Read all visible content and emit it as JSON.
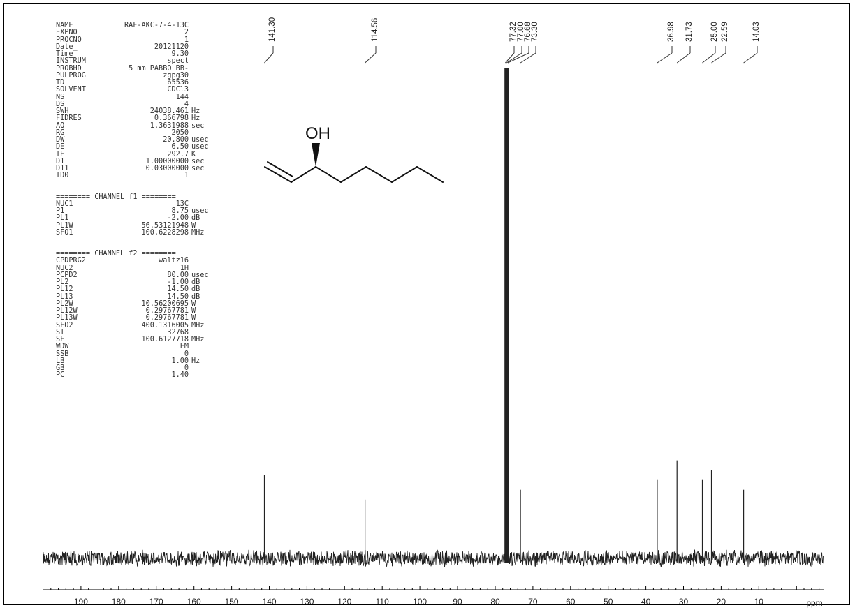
{
  "params_block1": [
    {
      "name": "NAME",
      "value": "RAF-AKC-7-4-13C",
      "unit": ""
    },
    {
      "name": "EXPNO",
      "value": "2",
      "unit": ""
    },
    {
      "name": "PROCNO",
      "value": "1",
      "unit": ""
    },
    {
      "name": "Date_",
      "value": "20121120",
      "unit": ""
    },
    {
      "name": "Time",
      "value": "9.30",
      "unit": ""
    },
    {
      "name": "INSTRUM",
      "value": "spect",
      "unit": ""
    },
    {
      "name": "PROBHD",
      "value": "5 mm PABBO BB-",
      "unit": ""
    },
    {
      "name": "PULPROG",
      "value": "zgpg30",
      "unit": ""
    },
    {
      "name": "TD",
      "value": "65536",
      "unit": ""
    },
    {
      "name": "SOLVENT",
      "value": "CDCl3",
      "unit": ""
    },
    {
      "name": "NS",
      "value": "144",
      "unit": ""
    },
    {
      "name": "DS",
      "value": "4",
      "unit": ""
    },
    {
      "name": "SWH",
      "value": "24038.461",
      "unit": "Hz"
    },
    {
      "name": "FIDRES",
      "value": "0.366798",
      "unit": "Hz"
    },
    {
      "name": "AQ",
      "value": "1.3631988",
      "unit": "sec"
    },
    {
      "name": "RG",
      "value": "2050",
      "unit": ""
    },
    {
      "name": "DW",
      "value": "20.800",
      "unit": "usec"
    },
    {
      "name": "DE",
      "value": "6.50",
      "unit": "usec"
    },
    {
      "name": "TE",
      "value": "292.7",
      "unit": "K"
    },
    {
      "name": "D1",
      "value": "1.00000000",
      "unit": "sec"
    },
    {
      "name": "D11",
      "value": "0.03000000",
      "unit": "sec"
    },
    {
      "name": "TD0",
      "value": "1",
      "unit": ""
    }
  ],
  "channel_f1_header": "======== CHANNEL f1 ========",
  "params_block2": [
    {
      "name": "NUC1",
      "value": "13C",
      "unit": ""
    },
    {
      "name": "P1",
      "value": "8.75",
      "unit": "usec"
    },
    {
      "name": "PL1",
      "value": "-2.00",
      "unit": "dB"
    },
    {
      "name": "PL1W",
      "value": "56.53121948",
      "unit": "W"
    },
    {
      "name": "SFO1",
      "value": "100.6228298",
      "unit": "MHz"
    }
  ],
  "channel_f2_header": "======== CHANNEL f2 ========",
  "params_block3": [
    {
      "name": "CPDPRG2",
      "value": "waltz16",
      "unit": ""
    },
    {
      "name": "NUC2",
      "value": "1H",
      "unit": ""
    },
    {
      "name": "PCPD2",
      "value": "80.00",
      "unit": "usec"
    },
    {
      "name": "PL2",
      "value": "-1.00",
      "unit": "dB"
    },
    {
      "name": "PL12",
      "value": "14.50",
      "unit": "dB"
    },
    {
      "name": "PL13",
      "value": "14.50",
      "unit": "dB"
    },
    {
      "name": "PL2W",
      "value": "10.56200695",
      "unit": "W"
    },
    {
      "name": "PL12W",
      "value": "0.29767781",
      "unit": "W"
    },
    {
      "name": "PL13W",
      "value": "0.29767781",
      "unit": "W"
    },
    {
      "name": "SFO2",
      "value": "400.1316005",
      "unit": "MHz"
    },
    {
      "name": "SI",
      "value": "32768",
      "unit": ""
    },
    {
      "name": "SF",
      "value": "100.6127718",
      "unit": "MHz"
    },
    {
      "name": "WDW",
      "value": "EM",
      "unit": ""
    },
    {
      "name": "SSB",
      "value": "0",
      "unit": ""
    },
    {
      "name": "LB",
      "value": "1.00",
      "unit": "Hz"
    },
    {
      "name": "GB",
      "value": "0",
      "unit": ""
    },
    {
      "name": "PC",
      "value": "1.40",
      "unit": ""
    }
  ],
  "molecule_label": "OH",
  "colors": {
    "line": "#222222",
    "text": "#333333",
    "frame": "#000000"
  },
  "chart_data": {
    "type": "line",
    "xlabel": "ppm",
    "ylabel": "",
    "xlim": [
      200,
      -7
    ],
    "x_reversed": true,
    "x_ticks": [
      190,
      180,
      170,
      160,
      150,
      140,
      130,
      120,
      110,
      100,
      90,
      80,
      70,
      60,
      50,
      40,
      30,
      20,
      10
    ],
    "peaks": [
      {
        "ppm": 141.3,
        "label": "141.30",
        "height": 0.17
      },
      {
        "ppm": 114.56,
        "label": "114.56",
        "height": 0.12
      },
      {
        "ppm": 77.32,
        "label": "77.32",
        "height": 1.0
      },
      {
        "ppm": 77.0,
        "label": "77.00",
        "height": 1.0
      },
      {
        "ppm": 76.68,
        "label": "76.68",
        "height": 1.0
      },
      {
        "ppm": 73.3,
        "label": "73.30",
        "height": 0.14
      },
      {
        "ppm": 36.98,
        "label": "36.98",
        "height": 0.16
      },
      {
        "ppm": 31.73,
        "label": "31.73",
        "height": 0.2
      },
      {
        "ppm": 25.0,
        "label": "25.00",
        "height": 0.16
      },
      {
        "ppm": 22.59,
        "label": "22.59",
        "height": 0.18
      },
      {
        "ppm": 14.03,
        "label": "14.03",
        "height": 0.14
      }
    ]
  }
}
